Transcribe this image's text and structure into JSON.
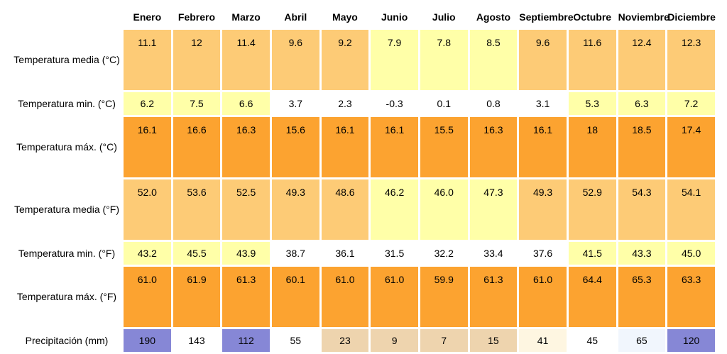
{
  "months": [
    "Enero",
    "Febrero",
    "Marzo",
    "Abril",
    "Mayo",
    "Junio",
    "Julio",
    "Agosto",
    "Septiembre",
    "Octubre",
    "Noviembre",
    "Diciembre"
  ],
  "colors": {
    "pale_orange": "#FDCB76",
    "light_yellow": "#FFFFA8",
    "dark_orange": "#FCA330",
    "white": "#FFFFFF",
    "periwinkle": "#8687D6",
    "tan": "#EED4AE",
    "cream": "#FEF6E1",
    "pale_blue": "#F1F6FD"
  },
  "rows": [
    {
      "label": "Temperatura media (°C)",
      "size": "tall",
      "values": [
        "11.1",
        "12",
        "11.4",
        "9.6",
        "9.2",
        "7.9",
        "7.8",
        "8.5",
        "9.6",
        "11.6",
        "12.4",
        "12.3"
      ],
      "colors": [
        "#FDCB76",
        "#FDCB76",
        "#FDCB76",
        "#FDCB76",
        "#FDCB76",
        "#FFFFA8",
        "#FFFFA8",
        "#FFFFA8",
        "#FDCB76",
        "#FDCB76",
        "#FDCB76",
        "#FDCB76"
      ]
    },
    {
      "label": "Temperatura min. (°C)",
      "size": "short",
      "values": [
        "6.2",
        "7.5",
        "6.6",
        "3.7",
        "2.3",
        "-0.3",
        "0.1",
        "0.8",
        "3.1",
        "5.3",
        "6.3",
        "7.2"
      ],
      "colors": [
        "#FFFFA8",
        "#FFFFA8",
        "#FFFFA8",
        "#FFFFFF",
        "#FFFFFF",
        "#FFFFFF",
        "#FFFFFF",
        "#FFFFFF",
        "#FFFFFF",
        "#FFFFA8",
        "#FFFFA8",
        "#FFFFA8"
      ]
    },
    {
      "label": "Temperatura máx. (°C)",
      "size": "tall",
      "values": [
        "16.1",
        "16.6",
        "16.3",
        "15.6",
        "16.1",
        "16.1",
        "15.5",
        "16.3",
        "16.1",
        "18",
        "18.5",
        "17.4"
      ],
      "colors": [
        "#FCA330",
        "#FCA330",
        "#FCA330",
        "#FCA330",
        "#FCA330",
        "#FCA330",
        "#FCA330",
        "#FCA330",
        "#FCA330",
        "#FCA330",
        "#FCA330",
        "#FCA330"
      ]
    },
    {
      "label": "Temperatura media (°F)",
      "size": "tall",
      "values": [
        "52.0",
        "53.6",
        "52.5",
        "49.3",
        "48.6",
        "46.2",
        "46.0",
        "47.3",
        "49.3",
        "52.9",
        "54.3",
        "54.1"
      ],
      "colors": [
        "#FDCB76",
        "#FDCB76",
        "#FDCB76",
        "#FDCB76",
        "#FDCB76",
        "#FFFFA8",
        "#FFFFA8",
        "#FFFFA8",
        "#FDCB76",
        "#FDCB76",
        "#FDCB76",
        "#FDCB76"
      ]
    },
    {
      "label": "Temperatura min. (°F)",
      "size": "short",
      "values": [
        "43.2",
        "45.5",
        "43.9",
        "38.7",
        "36.1",
        "31.5",
        "32.2",
        "33.4",
        "37.6",
        "41.5",
        "43.3",
        "45.0"
      ],
      "colors": [
        "#FFFFA8",
        "#FFFFA8",
        "#FFFFA8",
        "#FFFFFF",
        "#FFFFFF",
        "#FFFFFF",
        "#FFFFFF",
        "#FFFFFF",
        "#FFFFFF",
        "#FFFFA8",
        "#FFFFA8",
        "#FFFFA8"
      ]
    },
    {
      "label": "Temperatura máx. (°F)",
      "size": "tall",
      "values": [
        "61.0",
        "61.9",
        "61.3",
        "60.1",
        "61.0",
        "61.0",
        "59.9",
        "61.3",
        "61.0",
        "64.4",
        "65.3",
        "63.3"
      ],
      "colors": [
        "#FCA330",
        "#FCA330",
        "#FCA330",
        "#FCA330",
        "#FCA330",
        "#FCA330",
        "#FCA330",
        "#FCA330",
        "#FCA330",
        "#FCA330",
        "#FCA330",
        "#FCA330"
      ]
    },
    {
      "label": "Precipitación (mm)",
      "size": "short",
      "values": [
        "190",
        "143",
        "112",
        "55",
        "23",
        "9",
        "7",
        "15",
        "41",
        "45",
        "65",
        "120"
      ],
      "colors": [
        "#8687D6",
        "#FFFFFF",
        "#8687D6",
        "#FFFFFF",
        "#EED4AE",
        "#EED4AE",
        "#EED4AE",
        "#EED4AE",
        "#FEF6E1",
        "#FFFFFF",
        "#F1F6FD",
        "#8687D6"
      ]
    }
  ]
}
